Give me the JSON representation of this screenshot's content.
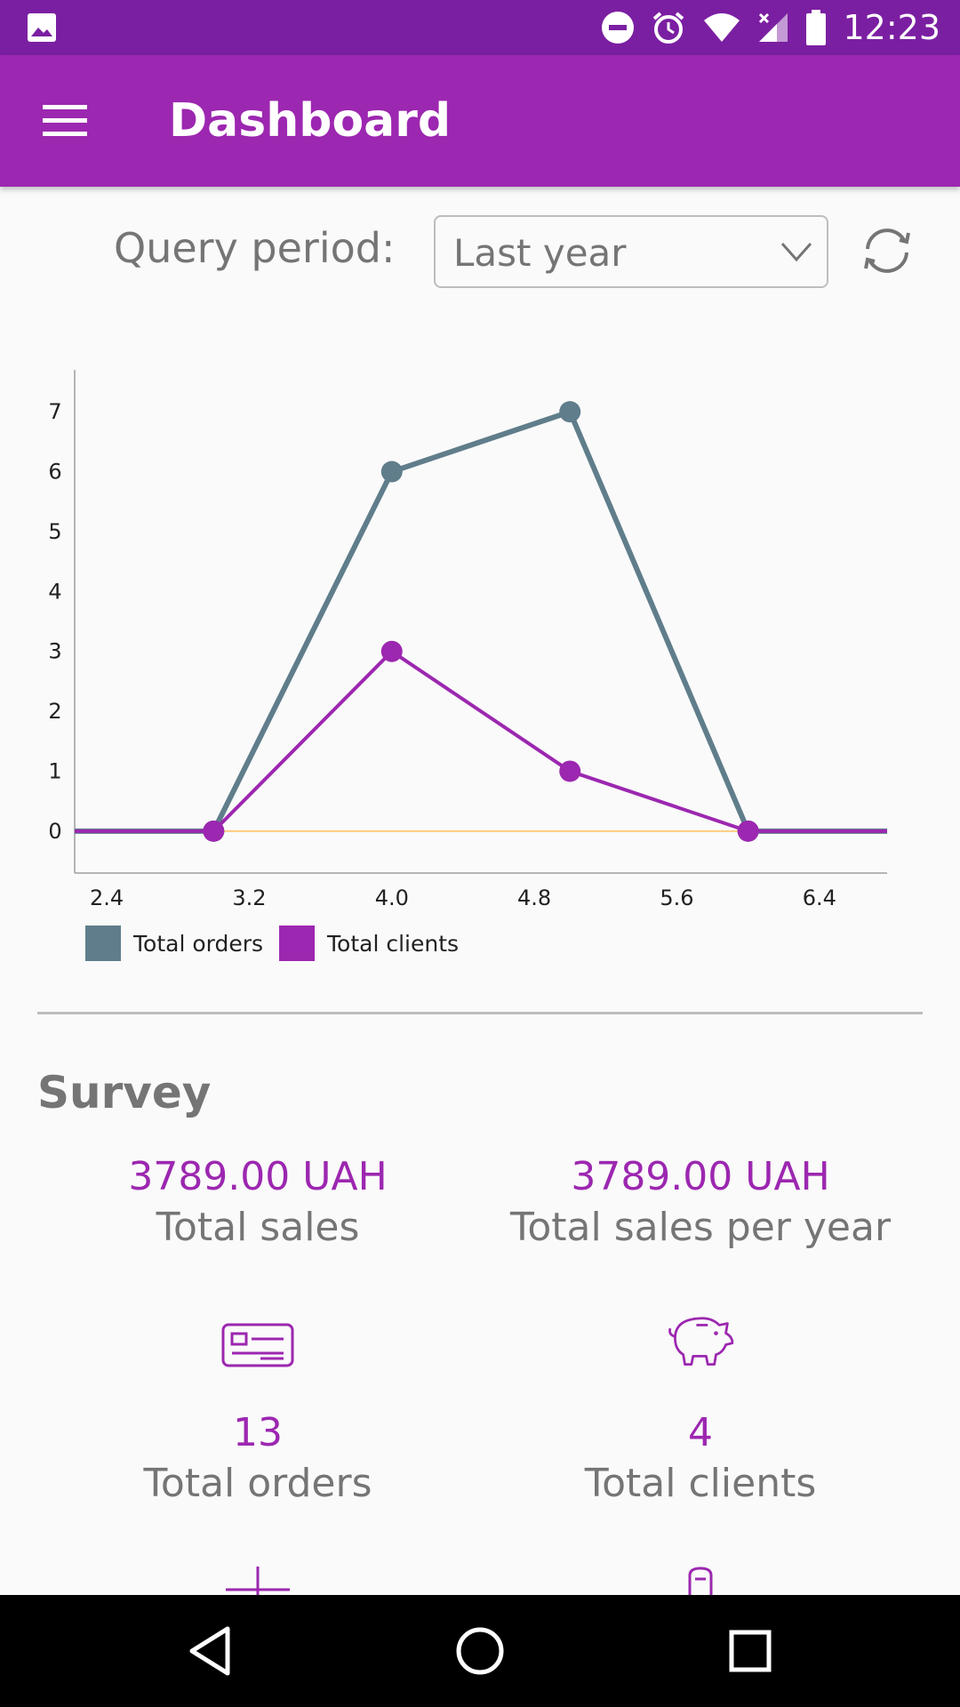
{
  "status_bar": {
    "time": "12:23",
    "icons": [
      "image-icon",
      "do-not-disturb-icon",
      "alarm-icon",
      "wifi-icon",
      "signal-icon",
      "battery-icon"
    ]
  },
  "app_bar": {
    "title": "Dashboard",
    "menu_icon": "hamburger-menu-icon"
  },
  "query": {
    "label": "Query period:",
    "selected": "Last year",
    "refresh_icon": "refresh-icon"
  },
  "chart_data": {
    "type": "line",
    "x": [
      3.0,
      4.0,
      5.0,
      6.0
    ],
    "x_ticks": [
      "2.4",
      "3.2",
      "4.0",
      "4.8",
      "5.6",
      "6.4"
    ],
    "y_ticks": [
      "0",
      "1",
      "2",
      "3",
      "4",
      "5",
      "6",
      "7"
    ],
    "xlim": [
      2.22,
      6.78
    ],
    "ylim": [
      -0.7,
      7.7
    ],
    "series": [
      {
        "name": "Total orders",
        "values": [
          0,
          6,
          7,
          0
        ],
        "color": "#607d8b"
      },
      {
        "name": "Total clients",
        "values": [
          0,
          3,
          1,
          0
        ],
        "color": "#9c27b0"
      }
    ],
    "legend": "bottom-left",
    "grid": false
  },
  "survey": {
    "title": "Survey",
    "stats": [
      {
        "value": "3789.00 UAH",
        "label": "Total sales"
      },
      {
        "value": "3789.00 UAH",
        "label": "Total sales per year"
      },
      {
        "value": "13",
        "label": "Total orders",
        "icon": "receipt-icon"
      },
      {
        "value": "4",
        "label": "Total clients",
        "icon": "piggy-bank-icon"
      }
    ]
  },
  "colors": {
    "primary": "#9c27b0",
    "primary_dark": "#7b1fa2",
    "text_secondary": "#757575"
  },
  "nav_bar": {
    "icons": [
      "back-icon",
      "home-icon",
      "recents-icon"
    ]
  }
}
